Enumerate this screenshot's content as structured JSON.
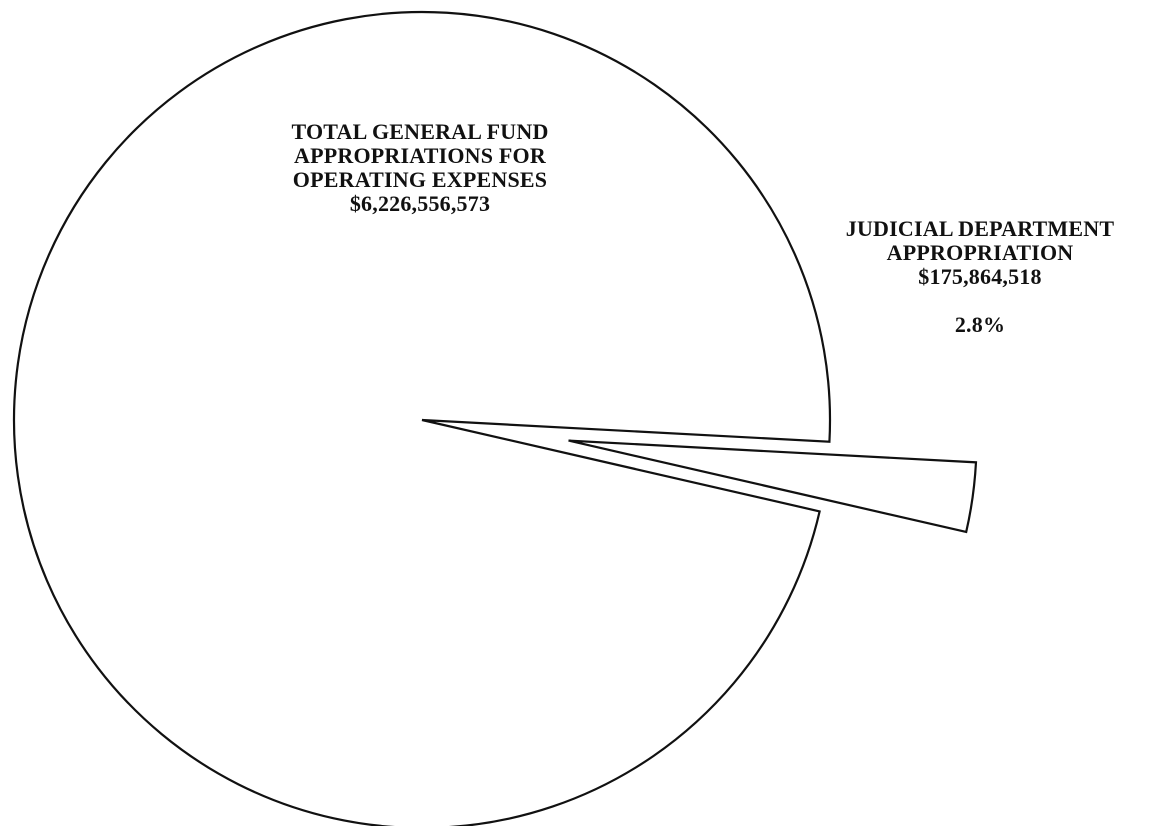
{
  "chart_data": {
    "type": "pie",
    "slices": [
      {
        "label_lines": [
          "TOTAL GENERAL FUND",
          "APPROPRIATIONS FOR",
          "OPERATING EXPENSES"
        ],
        "value_text": "$6,226,556,573",
        "value": 6226556573,
        "exploded": false
      },
      {
        "label_lines": [
          "JUDICIAL DEPARTMENT",
          "APPROPRIATION"
        ],
        "value_text": "$175,864,518",
        "value": 175864518,
        "percent_text": "2.8%",
        "percent": 2.8,
        "exploded": true
      }
    ],
    "colors": {
      "fill": "#ffffff",
      "stroke": "#111111"
    }
  }
}
